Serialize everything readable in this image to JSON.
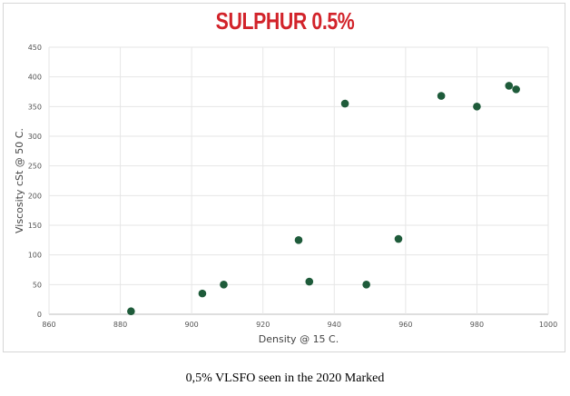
{
  "chart_data": {
    "type": "scatter",
    "title": "SULPHUR 0.5%",
    "xlabel": "Density @ 15 C.",
    "ylabel": "Viscosity cSt @ 50 C.",
    "xlim": [
      860,
      1000
    ],
    "ylim": [
      0,
      450
    ],
    "xticks": [
      860,
      880,
      900,
      920,
      940,
      960,
      980,
      1000
    ],
    "yticks": [
      0,
      50,
      100,
      150,
      200,
      250,
      300,
      350,
      400,
      450
    ],
    "grid": true,
    "point_color": "#1e5b3a",
    "points": [
      {
        "x": 883,
        "y": 5
      },
      {
        "x": 903,
        "y": 35
      },
      {
        "x": 909,
        "y": 50
      },
      {
        "x": 930,
        "y": 125
      },
      {
        "x": 933,
        "y": 55
      },
      {
        "x": 943,
        "y": 355
      },
      {
        "x": 949,
        "y": 50
      },
      {
        "x": 958,
        "y": 127
      },
      {
        "x": 970,
        "y": 368
      },
      {
        "x": 980,
        "y": 350
      },
      {
        "x": 989,
        "y": 385
      },
      {
        "x": 991,
        "y": 379
      }
    ]
  },
  "caption": "0,5% VLSFO seen in the 2020 Marked"
}
